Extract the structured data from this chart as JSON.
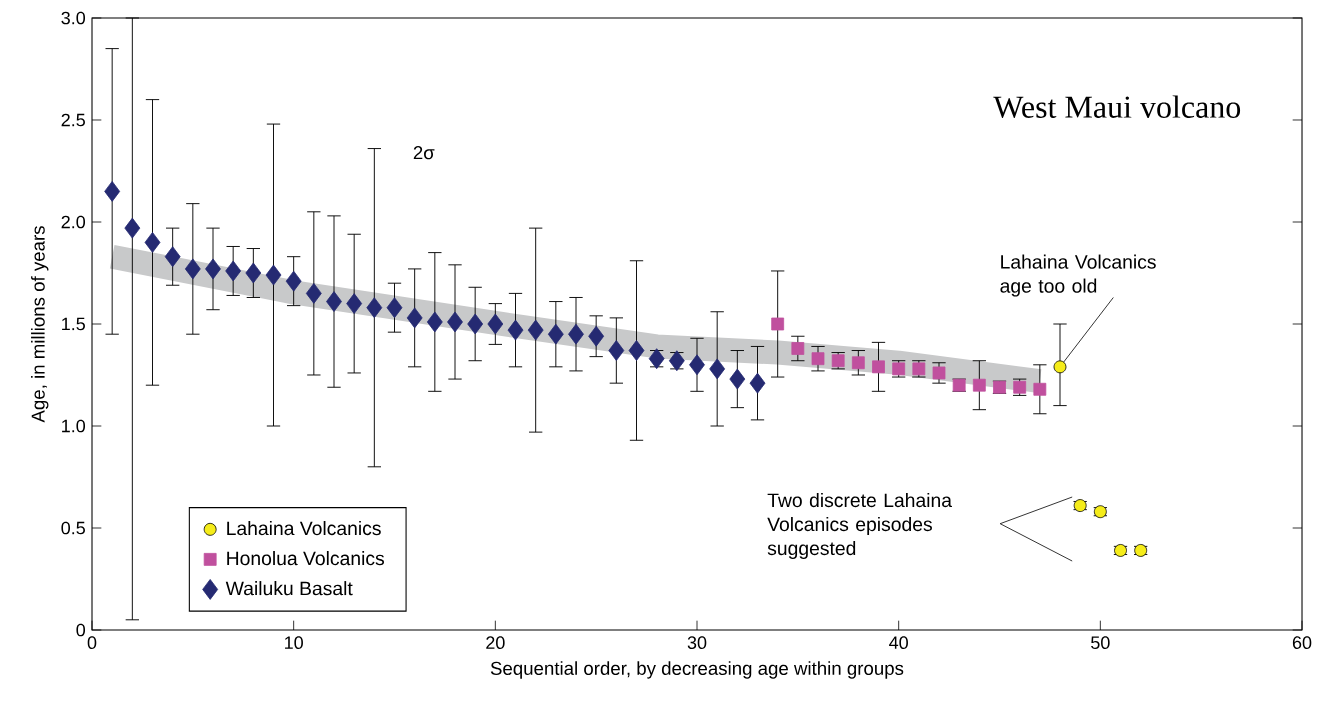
{
  "chart_data": {
    "type": "scatter",
    "title": "West Maui volcano",
    "xlabel": "Sequential order, by decreasing age within groups",
    "ylabel": "Age, in millions of years",
    "xlim": [
      0,
      60
    ],
    "xticks": [
      0,
      10,
      20,
      30,
      40,
      50,
      60
    ],
    "ylim": [
      0,
      3
    ],
    "yticks": [
      0,
      {
        "value": 0.5,
        "label": "0.5"
      },
      {
        "value": 1,
        "label": "1.0"
      },
      {
        "value": 1.5,
        "label": "1.5"
      },
      {
        "value": 2,
        "label": "2.0"
      },
      {
        "value": 2.5,
        "label": "2.5"
      },
      {
        "value": 3,
        "label": "3.0"
      }
    ],
    "grid": false,
    "legend": "bottom left",
    "series": [
      {
        "type": "line",
        "color": "#c8c9ca",
        "x": [
          1,
          10,
          20,
          28,
          34,
          40,
          47
        ],
        "values": [
          1.83,
          1.655,
          1.505,
          1.39,
          1.36,
          1.31,
          1.22
        ]
      },
      {
        "name": "Lahaina Volcanics",
        "color": "#f5ec1a",
        "marker": "circle",
        "x": [
          48,
          49,
          50,
          51,
          52
        ],
        "values": [
          1.29,
          0.61,
          0.58,
          0.39,
          0.39
        ],
        "errors": [
          [
            1.1,
            1.5
          ],
          0.02,
          0.02,
          0.02,
          0.02
        ]
      },
      {
        "name": "Honolua Volcanics",
        "color": "#c0509e",
        "marker": "square",
        "x": [
          34,
          35,
          36,
          37,
          38,
          39,
          40,
          41,
          42,
          43,
          44,
          45,
          46,
          47
        ],
        "values": [
          1.5,
          1.38,
          1.33,
          1.32,
          1.31,
          1.29,
          1.28,
          1.28,
          1.26,
          1.2,
          1.2,
          1.19,
          1.19,
          1.18
        ],
        "errors": [
          [
            1.24,
            1.76
          ],
          [
            1.32,
            1.44
          ],
          [
            1.27,
            1.39
          ],
          [
            1.28,
            1.36
          ],
          [
            1.25,
            1.37
          ],
          [
            1.17,
            1.41
          ],
          [
            1.24,
            1.32
          ],
          [
            1.24,
            1.32
          ],
          [
            1.21,
            1.31
          ],
          [
            1.17,
            1.23
          ],
          [
            1.08,
            1.32
          ],
          [
            1.16,
            1.22
          ],
          [
            1.15,
            1.23
          ],
          [
            1.06,
            1.3
          ]
        ]
      },
      {
        "name": "Wailuku Basalt",
        "color": "#252a72",
        "marker": "diamond",
        "x": [
          1,
          2,
          3,
          4,
          5,
          6,
          7,
          8,
          9,
          10,
          11,
          12,
          13,
          14,
          15,
          16,
          17,
          18,
          19,
          20,
          21,
          22,
          23,
          24,
          25,
          26,
          27,
          28,
          29,
          30,
          31,
          32,
          33
        ],
        "values": [
          2.15,
          1.97,
          1.9,
          1.83,
          1.77,
          1.77,
          1.76,
          1.75,
          1.74,
          1.71,
          1.65,
          1.61,
          1.6,
          1.58,
          1.58,
          1.53,
          1.51,
          1.51,
          1.5,
          1.5,
          1.47,
          1.47,
          1.45,
          1.45,
          1.44,
          1.37,
          1.37,
          1.33,
          1.32,
          1.3,
          1.28,
          1.23,
          1.21
        ],
        "errors": [
          [
            1.45,
            2.85
          ],
          [
            0.05,
            3.0
          ],
          [
            1.2,
            2.6
          ],
          [
            1.69,
            1.97
          ],
          [
            1.45,
            2.09
          ],
          [
            1.57,
            1.97
          ],
          [
            1.64,
            1.88
          ],
          [
            1.63,
            1.87
          ],
          [
            1.0,
            2.48
          ],
          [
            1.59,
            1.83
          ],
          [
            1.25,
            2.05
          ],
          [
            1.19,
            2.03
          ],
          [
            1.26,
            1.94
          ],
          [
            0.8,
            2.36
          ],
          [
            1.46,
            1.7
          ],
          [
            1.29,
            1.77
          ],
          [
            1.17,
            1.85
          ],
          [
            1.23,
            1.79
          ],
          [
            1.32,
            1.68
          ],
          [
            1.4,
            1.6
          ],
          [
            1.29,
            1.65
          ],
          [
            0.97,
            1.97
          ],
          [
            1.29,
            1.61
          ],
          [
            1.27,
            1.63
          ],
          [
            1.34,
            1.54
          ],
          [
            1.21,
            1.53
          ],
          [
            0.93,
            1.81
          ],
          [
            1.29,
            1.37
          ],
          [
            1.28,
            1.36
          ],
          [
            1.17,
            1.43
          ],
          [
            1.0,
            1.56
          ],
          [
            1.09,
            1.37
          ],
          [
            1.03,
            1.39
          ]
        ]
      }
    ],
    "annotations": [
      "2σ",
      {
        "text": "Lahaina Volcanics age too old",
        "x": 48,
        "y": 1.29
      },
      "Two discrete Lahaina Volcanics episodes suggested"
    ]
  }
}
